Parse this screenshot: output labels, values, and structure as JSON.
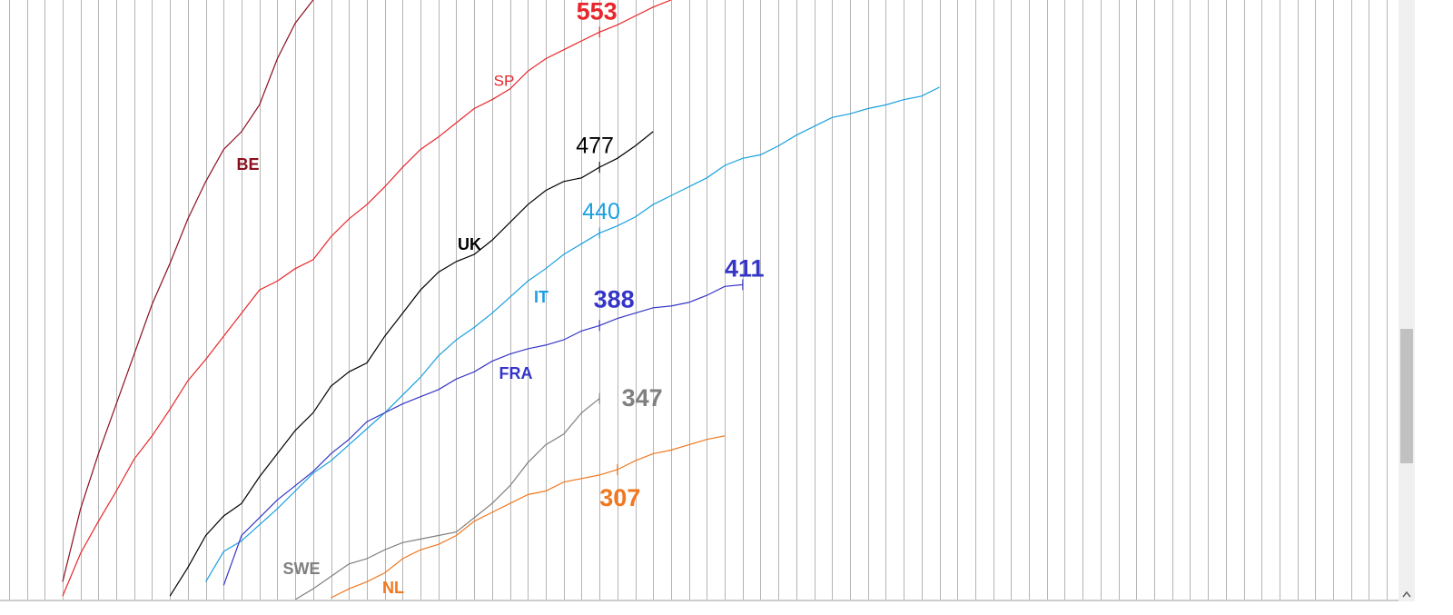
{
  "chart_data": {
    "type": "line",
    "xlim": [
      -0.5,
      77.5
    ],
    "ylim": [
      234,
      571
    ],
    "xticks": [
      0,
      1,
      2,
      3,
      4,
      5,
      6,
      7,
      8,
      9,
      10,
      11,
      12,
      13,
      14,
      15,
      16,
      17,
      18,
      19,
      20,
      21,
      22,
      23,
      24,
      25,
      26,
      27,
      28,
      29,
      30,
      31,
      32,
      33,
      34,
      35,
      36,
      37,
      38,
      39,
      40,
      41,
      42,
      43,
      44,
      45,
      46,
      47,
      48,
      49,
      50,
      51,
      52,
      53,
      54,
      55,
      56,
      57,
      58,
      59,
      60,
      61,
      62,
      63,
      64,
      65,
      66,
      67,
      68,
      69,
      70,
      71,
      72,
      73,
      74,
      75,
      76,
      77
    ],
    "grid": true,
    "series": [
      {
        "name": "BE",
        "color": "#8b1020",
        "x": [
          3,
          4,
          5,
          6,
          7,
          8,
          9,
          10,
          11,
          12,
          13,
          14,
          15,
          16,
          17
        ],
        "values": [
          244,
          285,
          316,
          344,
          372,
          400,
          423,
          448,
          469,
          487,
          497,
          512,
          538,
          558,
          571
        ],
        "labeled": []
      },
      {
        "name": "SP",
        "color": "#e8262b",
        "x": [
          3,
          4,
          5,
          6,
          7,
          8,
          9,
          10,
          11,
          12,
          13,
          14,
          15,
          16,
          17,
          18,
          19,
          20,
          21,
          22,
          23,
          24,
          25,
          26,
          27,
          28,
          29,
          30,
          31,
          32,
          33,
          34,
          35,
          36,
          37
        ],
        "values": [
          236,
          260,
          278,
          295,
          313,
          326,
          341,
          357,
          369,
          382,
          395,
          408,
          413,
          420,
          425,
          438,
          448,
          456,
          466,
          477,
          487,
          494,
          502,
          510,
          515,
          521,
          531,
          538,
          543,
          548,
          553,
          557,
          562,
          567,
          571
        ],
        "labeled": [
          {
            "x": 33,
            "value": 553
          }
        ]
      },
      {
        "name": "UK",
        "color": "#000000",
        "x": [
          9,
          10,
          11,
          12,
          13,
          14,
          15,
          16,
          17,
          18,
          19,
          20,
          21,
          22,
          23,
          24,
          25,
          26,
          27,
          28,
          29,
          30,
          31,
          32,
          33,
          34,
          35,
          36
        ],
        "values": [
          236,
          252,
          270,
          281,
          288,
          303,
          316,
          329,
          339,
          354,
          362,
          367,
          382,
          395,
          408,
          418,
          424,
          428,
          436,
          446,
          456,
          464,
          469,
          471,
          477,
          482,
          489,
          497
        ],
        "labeled": [
          {
            "x": 33,
            "value": 477
          }
        ]
      },
      {
        "name": "IT",
        "color": "#1aa0e0",
        "x": [
          11,
          12,
          13,
          14,
          15,
          16,
          17,
          18,
          19,
          20,
          21,
          22,
          23,
          24,
          25,
          26,
          27,
          28,
          29,
          30,
          31,
          32,
          33,
          34,
          35,
          36,
          37,
          38,
          39,
          40,
          41,
          42,
          43,
          44,
          45,
          46,
          47,
          48,
          49,
          50,
          51,
          52
        ],
        "values": [
          244,
          261,
          267,
          276,
          285,
          295,
          305,
          312,
          321,
          330,
          339,
          349,
          359,
          371,
          380,
          387,
          395,
          404,
          413,
          420,
          428,
          434,
          440,
          444,
          449,
          456,
          461,
          466,
          471,
          478,
          482,
          484,
          489,
          495,
          500,
          505,
          507,
          510,
          512,
          515,
          517,
          522
        ],
        "labeled": [
          {
            "x": 33,
            "value": 440
          }
        ]
      },
      {
        "name": "FRA",
        "color": "#3535c8",
        "x": [
          12,
          13,
          14,
          15,
          16,
          17,
          18,
          19,
          20,
          21,
          22,
          23,
          24,
          25,
          26,
          27,
          28,
          29,
          30,
          31,
          32,
          33,
          34,
          35,
          36,
          37,
          38,
          39,
          40,
          41
        ],
        "values": [
          242,
          270,
          280,
          290,
          298,
          306,
          316,
          324,
          334,
          339,
          344,
          348,
          352,
          358,
          362,
          368,
          372,
          375,
          377,
          380,
          385,
          388,
          392,
          395,
          398,
          399,
          401,
          405,
          410,
          411
        ],
        "labeled": [
          {
            "x": 33,
            "value": 388
          },
          {
            "x": 41,
            "value": 411
          }
        ]
      },
      {
        "name": "SWE",
        "color": "#808080",
        "x": [
          16,
          17,
          18,
          19,
          20,
          21,
          22,
          23,
          24,
          25,
          26,
          27,
          28,
          29,
          30,
          31,
          32,
          33
        ],
        "values": [
          234,
          240,
          247,
          254,
          257,
          262,
          266,
          268,
          270,
          272,
          280,
          288,
          298,
          311,
          321,
          327,
          339,
          347
        ],
        "labeled": [
          {
            "x": 33,
            "value": 347
          }
        ]
      },
      {
        "name": "NL",
        "color": "#f07820",
        "x": [
          18,
          19,
          20,
          21,
          22,
          23,
          24,
          25,
          26,
          27,
          28,
          29,
          30,
          31,
          32,
          33,
          34,
          35,
          36,
          37,
          38,
          39,
          40
        ],
        "values": [
          235,
          240,
          244,
          249,
          257,
          262,
          265,
          270,
          278,
          283,
          288,
          293,
          295,
          300,
          302,
          304,
          307,
          312,
          316,
          318,
          321,
          324,
          326
        ],
        "labeled": [
          {
            "x": 34,
            "value": 307
          }
        ]
      }
    ]
  }
}
